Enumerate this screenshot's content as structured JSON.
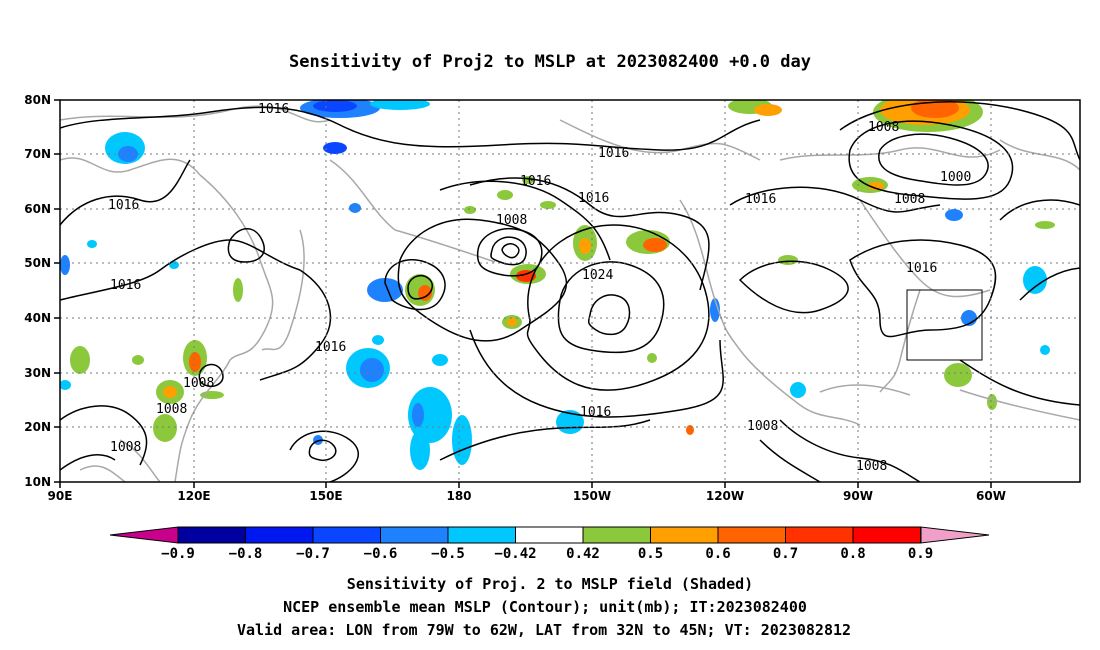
{
  "title": "Sensitivity of Proj2 to MSLP at 2023082400 +0.0 day",
  "lat_labels": [
    "80N",
    "70N",
    "60N",
    "50N",
    "40N",
    "30N",
    "20N",
    "10N"
  ],
  "lon_labels": [
    "90E",
    "120E",
    "150E",
    "180",
    "150W",
    "120W",
    "90W",
    "60W"
  ],
  "contour_labels": [
    {
      "text": "1016"
    },
    {
      "text": "1016"
    },
    {
      "text": "1016"
    },
    {
      "text": "1016"
    },
    {
      "text": "1016"
    },
    {
      "text": "1016"
    },
    {
      "text": "1016"
    },
    {
      "text": "1016"
    },
    {
      "text": "1016"
    },
    {
      "text": "1016"
    },
    {
      "text": "1008"
    },
    {
      "text": "1008"
    },
    {
      "text": "1000"
    },
    {
      "text": "1008"
    },
    {
      "text": "1024"
    },
    {
      "text": "1008"
    },
    {
      "text": "1008"
    },
    {
      "text": "1008"
    },
    {
      "text": "1008"
    },
    {
      "text": "1008"
    }
  ],
  "colorbar": {
    "labels": [
      "-0.9",
      "-0.8",
      "-0.7",
      "-0.6",
      "-0.5",
      "-0.42",
      "0.42",
      "0.5",
      "0.6",
      "0.7",
      "0.8",
      "0.9"
    ],
    "colors": [
      "#0000a0",
      "#0018f0",
      "#0a46ff",
      "#1e82ff",
      "#00c8ff",
      "#ffffff",
      "#8cc83c",
      "#ffa000",
      "#ff6400",
      "#ff3200",
      "#ff0000"
    ],
    "left_arrow_color": "#c8008c",
    "right_arrow_color": "#f0a0c8"
  },
  "footer": {
    "line1": "Sensitivity of Proj. 2 to MSLP field (Shaded)",
    "line2": "NCEP ensemble mean MSLP (Contour); unit(mb); IT:2023082400",
    "line3": "Valid area: LON from 79W to 62W, LAT from 32N to 45N; VT: 2023082812"
  }
}
